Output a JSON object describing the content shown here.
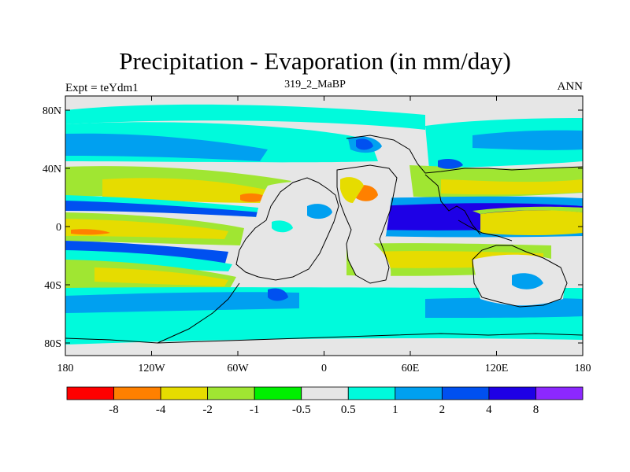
{
  "title": "Precipitation - Evaporation (in mm/day)",
  "subtitle": "319_2_MaBP",
  "left_label": "Expt = teYdm1",
  "right_label": "ANN",
  "map": {
    "lat_ticks": [
      "80N",
      "40N",
      "0",
      "40S",
      "80S"
    ],
    "lon_ticks": [
      "180",
      "120W",
      "60W",
      "0",
      "60E",
      "120E",
      "180"
    ],
    "background_color": "#e6e6e6"
  },
  "colorbar": {
    "colors": [
      "#ff0000",
      "#ff8000",
      "#e6dc00",
      "#a0e632",
      "#00f000",
      "#e6e6e6",
      "#00fadc",
      "#00a0f0",
      "#0050f0",
      "#1e00e6",
      "#8c28ff"
    ],
    "labels": [
      "-8",
      "-4",
      "-2",
      "-1",
      "-0.5",
      "0.5",
      "1",
      "2",
      "4",
      "8"
    ]
  }
}
